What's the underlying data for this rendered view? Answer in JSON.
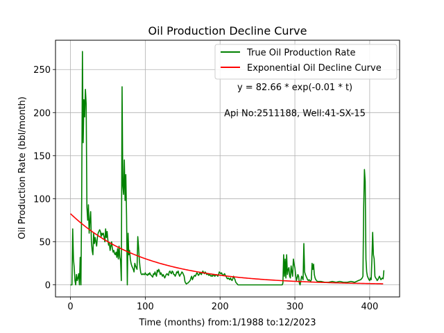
{
  "chart_data": {
    "type": "line",
    "title": "Oil Production Decline Curve",
    "xlabel": "Time (months) from:1/1988 to:12/2023",
    "ylabel": "Oil Production Rate (bbl/month)",
    "xlim": [
      -20,
      440
    ],
    "ylim": [
      -14,
      284
    ],
    "xticks": [
      0,
      100,
      200,
      300,
      400
    ],
    "yticks": [
      0,
      50,
      100,
      150,
      200,
      250
    ],
    "grid": true,
    "legend_position": "top-right",
    "annotations": [
      {
        "text": "y = 82.66 * exp(-0.01 * t)",
        "x": 300,
        "y": 226
      },
      {
        "text": "Api No:2511188, Well:41-SX-15",
        "x": 300,
        "y": 196
      }
    ],
    "series": [
      {
        "name": "True Oil Production Rate",
        "color": "#008000",
        "kind": "line",
        "points": [
          [
            0,
            0
          ],
          [
            1,
            0
          ],
          [
            2,
            0
          ],
          [
            3,
            65
          ],
          [
            4,
            30
          ],
          [
            5,
            20
          ],
          [
            6,
            5
          ],
          [
            7,
            0
          ],
          [
            8,
            12
          ],
          [
            9,
            5
          ],
          [
            10,
            8
          ],
          [
            11,
            13
          ],
          [
            12,
            0
          ],
          [
            13,
            32
          ],
          [
            14,
            0
          ],
          [
            15,
            100
          ],
          [
            16,
            271
          ],
          [
            17,
            165
          ],
          [
            18,
            215
          ],
          [
            19,
            195
          ],
          [
            20,
            227
          ],
          [
            21,
            210
          ],
          [
            22,
            90
          ],
          [
            23,
            75
          ],
          [
            24,
            93
          ],
          [
            25,
            60
          ],
          [
            26,
            75
          ],
          [
            27,
            85
          ],
          [
            28,
            50
          ],
          [
            29,
            40
          ],
          [
            30,
            35
          ],
          [
            31,
            60
          ],
          [
            32,
            48
          ],
          [
            33,
            55
          ],
          [
            34,
            50
          ],
          [
            35,
            45
          ],
          [
            36,
            55
          ],
          [
            37,
            60
          ],
          [
            38,
            62
          ],
          [
            39,
            64
          ],
          [
            40,
            62
          ],
          [
            41,
            56
          ],
          [
            42,
            60
          ],
          [
            43,
            58
          ],
          [
            44,
            60
          ],
          [
            45,
            55
          ],
          [
            46,
            50
          ],
          [
            47,
            65
          ],
          [
            48,
            55
          ],
          [
            49,
            62
          ],
          [
            50,
            52
          ],
          [
            51,
            46
          ],
          [
            52,
            48
          ],
          [
            53,
            40
          ],
          [
            54,
            45
          ],
          [
            55,
            50
          ],
          [
            56,
            42
          ],
          [
            57,
            38
          ],
          [
            58,
            40
          ],
          [
            59,
            36
          ],
          [
            60,
            35
          ],
          [
            61,
            38
          ],
          [
            62,
            32
          ],
          [
            63,
            42
          ],
          [
            64,
            30
          ],
          [
            65,
            45
          ],
          [
            66,
            32
          ],
          [
            67,
            28
          ],
          [
            68,
            5
          ],
          [
            69,
            230
          ],
          [
            70,
            115
          ],
          [
            71,
            105
          ],
          [
            72,
            145
          ],
          [
            73,
            98
          ],
          [
            74,
            128
          ],
          [
            75,
            80
          ],
          [
            76,
            0
          ],
          [
            77,
            60
          ],
          [
            78,
            35
          ],
          [
            79,
            40
          ],
          [
            80,
            30
          ],
          [
            81,
            25
          ],
          [
            82,
            22
          ],
          [
            83,
            20
          ],
          [
            84,
            18
          ],
          [
            85,
            15
          ],
          [
            86,
            25
          ],
          [
            87,
            22
          ],
          [
            88,
            20
          ],
          [
            89,
            18
          ],
          [
            90,
            56
          ],
          [
            91,
            44
          ],
          [
            92,
            30
          ],
          [
            93,
            20
          ],
          [
            94,
            14
          ],
          [
            95,
            12
          ],
          [
            96,
            12
          ],
          [
            97,
            13
          ],
          [
            98,
            12
          ],
          [
            99,
            12
          ],
          [
            100,
            14
          ],
          [
            101,
            12
          ],
          [
            102,
            12
          ],
          [
            103,
            11
          ],
          [
            104,
            13
          ],
          [
            105,
            12
          ],
          [
            106,
            14
          ],
          [
            107,
            12
          ],
          [
            108,
            11
          ],
          [
            109,
            10
          ],
          [
            110,
            9
          ],
          [
            111,
            13
          ],
          [
            112,
            12
          ],
          [
            113,
            15
          ],
          [
            114,
            12
          ],
          [
            115,
            10
          ],
          [
            116,
            17
          ],
          [
            117,
            15
          ],
          [
            118,
            18
          ],
          [
            119,
            16
          ],
          [
            120,
            12
          ],
          [
            121,
            14
          ],
          [
            122,
            12
          ],
          [
            123,
            10
          ],
          [
            124,
            12
          ],
          [
            125,
            10
          ],
          [
            126,
            8
          ],
          [
            127,
            10
          ],
          [
            128,
            12
          ],
          [
            129,
            13
          ],
          [
            130,
            12
          ],
          [
            131,
            11
          ],
          [
            132,
            15
          ],
          [
            133,
            16
          ],
          [
            134,
            14
          ],
          [
            135,
            13
          ],
          [
            136,
            16
          ],
          [
            137,
            15
          ],
          [
            138,
            12
          ],
          [
            139,
            12
          ],
          [
            140,
            10
          ],
          [
            141,
            12
          ],
          [
            142,
            15
          ],
          [
            143,
            14
          ],
          [
            144,
            16
          ],
          [
            145,
            12
          ],
          [
            146,
            10
          ],
          [
            147,
            12
          ],
          [
            148,
            13
          ],
          [
            149,
            15
          ],
          [
            150,
            14
          ],
          [
            151,
            12
          ],
          [
            152,
            10
          ],
          [
            153,
            4
          ],
          [
            154,
            2
          ],
          [
            155,
            1
          ],
          [
            156,
            2
          ],
          [
            157,
            2
          ],
          [
            158,
            3
          ],
          [
            159,
            4
          ],
          [
            160,
            5
          ],
          [
            161,
            8
          ],
          [
            162,
            10
          ],
          [
            163,
            6
          ],
          [
            164,
            8
          ],
          [
            165,
            10
          ],
          [
            166,
            11
          ],
          [
            167,
            10
          ],
          [
            168,
            12
          ],
          [
            169,
            14
          ],
          [
            170,
            13
          ],
          [
            171,
            11
          ],
          [
            172,
            12
          ],
          [
            173,
            14
          ],
          [
            174,
            13
          ],
          [
            175,
            12
          ],
          [
            176,
            14
          ],
          [
            177,
            16
          ],
          [
            178,
            14
          ],
          [
            179,
            13
          ],
          [
            180,
            15
          ],
          [
            181,
            14
          ],
          [
            182,
            12
          ],
          [
            183,
            13
          ],
          [
            184,
            12
          ],
          [
            185,
            11
          ],
          [
            186,
            12
          ],
          [
            187,
            11
          ],
          [
            188,
            10
          ],
          [
            189,
            11
          ],
          [
            190,
            10
          ],
          [
            191,
            12
          ],
          [
            192,
            11
          ],
          [
            193,
            10
          ],
          [
            194,
            11
          ],
          [
            195,
            12
          ],
          [
            196,
            11
          ],
          [
            197,
            10
          ],
          [
            198,
            12
          ],
          [
            199,
            15
          ],
          [
            200,
            14
          ],
          [
            201,
            13
          ],
          [
            202,
            14
          ],
          [
            203,
            12
          ],
          [
            204,
            11
          ],
          [
            205,
            12
          ],
          [
            206,
            13
          ],
          [
            207,
            11
          ],
          [
            208,
            10
          ],
          [
            209,
            8
          ],
          [
            210,
            7
          ],
          [
            211,
            8
          ],
          [
            212,
            7
          ],
          [
            213,
            6
          ],
          [
            214,
            8
          ],
          [
            215,
            6
          ],
          [
            216,
            5
          ],
          [
            217,
            7
          ],
          [
            218,
            10
          ],
          [
            219,
            8
          ],
          [
            220,
            6
          ],
          [
            221,
            3
          ],
          [
            222,
            2
          ],
          [
            223,
            1
          ],
          [
            224,
            0
          ],
          [
            230,
            0
          ],
          [
            240,
            0
          ],
          [
            250,
            0
          ],
          [
            260,
            0
          ],
          [
            270,
            0
          ],
          [
            280,
            0
          ],
          [
            283,
            0
          ],
          [
            284,
            2
          ],
          [
            285,
            35
          ],
          [
            286,
            10
          ],
          [
            287,
            30
          ],
          [
            288,
            8
          ],
          [
            289,
            35
          ],
          [
            290,
            12
          ],
          [
            291,
            18
          ],
          [
            292,
            20
          ],
          [
            293,
            10
          ],
          [
            294,
            8
          ],
          [
            295,
            22
          ],
          [
            296,
            15
          ],
          [
            297,
            10
          ],
          [
            298,
            30
          ],
          [
            299,
            24
          ],
          [
            300,
            20
          ],
          [
            301,
            12
          ],
          [
            302,
            5
          ],
          [
            303,
            8
          ],
          [
            304,
            12
          ],
          [
            305,
            10
          ],
          [
            306,
            2
          ],
          [
            307,
            0
          ],
          [
            308,
            5
          ],
          [
            309,
            10
          ],
          [
            310,
            8
          ],
          [
            311,
            6
          ],
          [
            312,
            48
          ],
          [
            313,
            15
          ],
          [
            314,
            12
          ],
          [
            315,
            10
          ],
          [
            316,
            8
          ],
          [
            317,
            6
          ],
          [
            318,
            5
          ],
          [
            319,
            6
          ],
          [
            320,
            5
          ],
          [
            321,
            4
          ],
          [
            322,
            6
          ],
          [
            323,
            25
          ],
          [
            324,
            18
          ],
          [
            325,
            24
          ],
          [
            326,
            12
          ],
          [
            327,
            8
          ],
          [
            328,
            6
          ],
          [
            329,
            5
          ],
          [
            330,
            4
          ],
          [
            335,
            4
          ],
          [
            340,
            3
          ],
          [
            345,
            3
          ],
          [
            350,
            4
          ],
          [
            355,
            3
          ],
          [
            360,
            4
          ],
          [
            365,
            3
          ],
          [
            370,
            3
          ],
          [
            375,
            4
          ],
          [
            380,
            3
          ],
          [
            385,
            5
          ],
          [
            388,
            6
          ],
          [
            390,
            8
          ],
          [
            391,
            10
          ],
          [
            392,
            90
          ],
          [
            393,
            134
          ],
          [
            394,
            120
          ],
          [
            395,
            30
          ],
          [
            396,
            15
          ],
          [
            397,
            10
          ],
          [
            398,
            8
          ],
          [
            399,
            6
          ],
          [
            400,
            5
          ],
          [
            401,
            8
          ],
          [
            402,
            6
          ],
          [
            403,
            30
          ],
          [
            404,
            61
          ],
          [
            405,
            35
          ],
          [
            406,
            30
          ],
          [
            407,
            10
          ],
          [
            408,
            8
          ],
          [
            409,
            7
          ],
          [
            410,
            5
          ],
          [
            411,
            6
          ],
          [
            412,
            8
          ],
          [
            413,
            10
          ],
          [
            414,
            8
          ],
          [
            415,
            6
          ],
          [
            416,
            7
          ],
          [
            417,
            8
          ],
          [
            418,
            7
          ],
          [
            419,
            17
          ]
        ]
      },
      {
        "name": "Exponential Oil Decline Curve",
        "color": "#ff0000",
        "kind": "exponential",
        "a": 82.66,
        "b": -0.01,
        "x_range": [
          0,
          419
        ]
      }
    ]
  }
}
